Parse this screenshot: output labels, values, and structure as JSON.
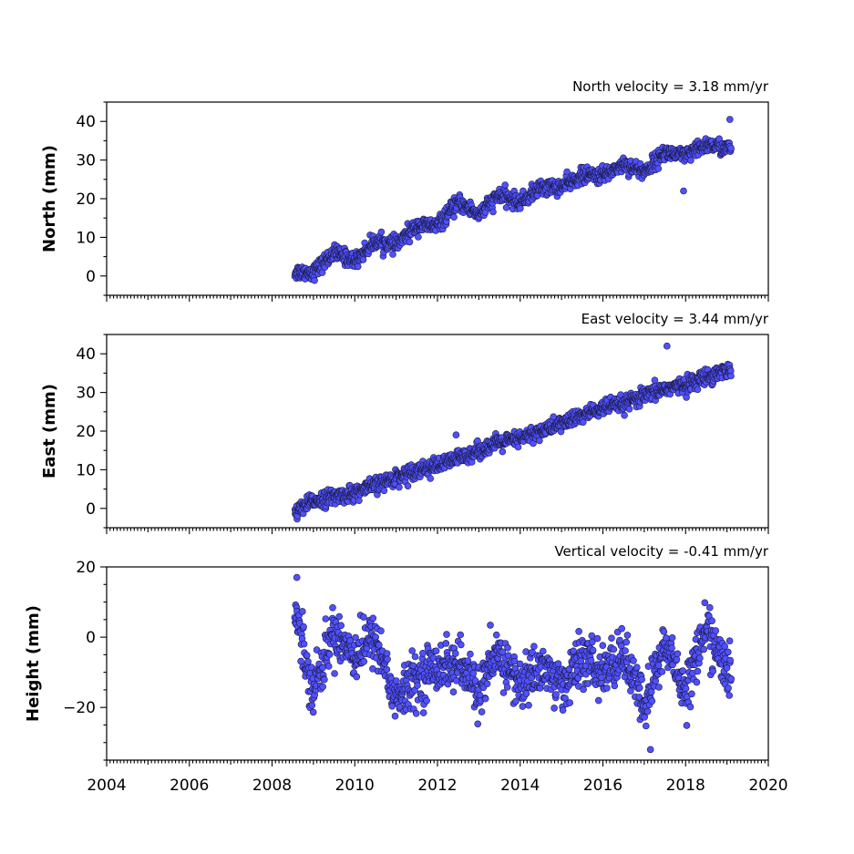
{
  "chart_data": [
    {
      "type": "scatter",
      "title": "North velocity = 3.18 mm/yr",
      "xlabel": "",
      "ylabel": "North (mm)",
      "xlim": [
        2004,
        2020
      ],
      "ylim": [
        -5,
        45
      ],
      "xticks": [
        2004,
        2006,
        2008,
        2010,
        2012,
        2014,
        2016,
        2018,
        2020
      ],
      "yticks": [
        0,
        10,
        20,
        30,
        40
      ],
      "show_xtick_labels": false,
      "marker_color": "#5050ff",
      "velocity_mm_per_yr": 3.18,
      "time_span": [
        2008.55,
        2019.1
      ],
      "series": [
        {
          "x": [
            2008.6,
            2009.0,
            2009.5,
            2010.0,
            2010.5,
            2011.0,
            2011.5,
            2012.0,
            2012.5,
            2013.0,
            2013.5,
            2014.0,
            2014.5,
            2015.0,
            2015.5,
            2016.0,
            2016.5,
            2017.0,
            2017.5,
            2018.0,
            2018.5,
            2019.0
          ],
          "y": [
            1,
            1,
            6,
            4,
            9,
            8,
            13,
            13,
            19,
            16,
            21,
            19,
            23,
            23,
            26,
            26,
            29,
            27,
            32,
            31,
            34,
            33
          ]
        }
      ],
      "outliers": {
        "x": [
          2017.95,
          2019.07
        ],
        "y": [
          22,
          40.5
        ]
      }
    },
    {
      "type": "scatter",
      "title": "East velocity = 3.44 mm/yr",
      "xlabel": "",
      "ylabel": "East (mm)",
      "xlim": [
        2004,
        2020
      ],
      "ylim": [
        -5,
        45
      ],
      "xticks": [
        2004,
        2006,
        2008,
        2010,
        2012,
        2014,
        2016,
        2018,
        2020
      ],
      "yticks": [
        0,
        10,
        20,
        30,
        40
      ],
      "show_xtick_labels": false,
      "marker_color": "#5050ff",
      "velocity_mm_per_yr": 3.44,
      "time_span": [
        2008.55,
        2019.1
      ],
      "series": [
        {
          "x": [
            2008.6,
            2009.0,
            2009.5,
            2010.0,
            2010.5,
            2011.0,
            2011.5,
            2012.0,
            2012.5,
            2013.0,
            2013.5,
            2014.0,
            2014.5,
            2015.0,
            2015.5,
            2016.0,
            2016.5,
            2017.0,
            2017.5,
            2018.0,
            2018.5,
            2019.0
          ],
          "y": [
            -1,
            2,
            3,
            4,
            6,
            8,
            10,
            11,
            13,
            15,
            17,
            18,
            20,
            22,
            24,
            26,
            27,
            29,
            31,
            32,
            34,
            36
          ]
        }
      ],
      "outliers": {
        "x": [
          2017.55,
          2012.45
        ],
        "y": [
          42,
          19
        ]
      }
    },
    {
      "type": "scatter",
      "title": "Vertical velocity = -0.41 mm/yr",
      "xlabel": "",
      "ylabel": "Height (mm)",
      "xlim": [
        2004,
        2020
      ],
      "ylim": [
        -35,
        20
      ],
      "xticks": [
        2004,
        2006,
        2008,
        2010,
        2012,
        2014,
        2016,
        2018,
        2020
      ],
      "xtick_labels": [
        "2004",
        "2006",
        "2008",
        "2010",
        "2012",
        "2014",
        "2016",
        "2018",
        "2020"
      ],
      "yticks": [
        -20,
        0,
        20
      ],
      "ytick_labels": [
        "−20",
        "0",
        "20"
      ],
      "show_xtick_labels": true,
      "marker_color": "#5050ff",
      "velocity_mm_per_yr": -0.41,
      "time_span": [
        2008.55,
        2019.1
      ],
      "series": [
        {
          "x": [
            2008.6,
            2009.0,
            2009.5,
            2010.0,
            2010.5,
            2011.0,
            2011.5,
            2012.0,
            2012.5,
            2013.0,
            2013.5,
            2014.0,
            2014.5,
            2015.0,
            2015.5,
            2016.0,
            2016.5,
            2017.0,
            2017.5,
            2018.0,
            2018.5,
            2019.0
          ],
          "y": [
            5,
            -15,
            2,
            -5,
            0,
            -18,
            -12,
            -8,
            -8,
            -15,
            -5,
            -14,
            -8,
            -14,
            -6,
            -10,
            -5,
            -20,
            -2,
            -15,
            3,
            -10
          ]
        }
      ],
      "outliers": {
        "x": [
          2017.15,
          2008.6
        ],
        "y": [
          -32,
          17
        ]
      }
    }
  ]
}
